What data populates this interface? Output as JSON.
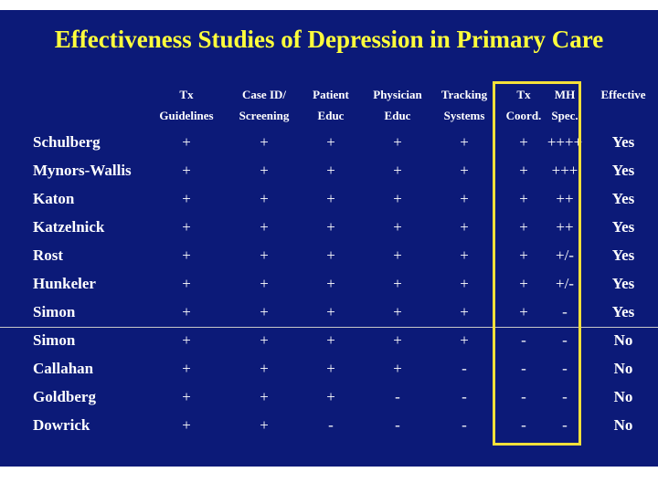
{
  "title": "Effectiveness Studies of Depression in Primary Care",
  "columns": [
    {
      "line1": "Tx",
      "line2": "Guidelines"
    },
    {
      "line1": "Case ID/",
      "line2": "Screening"
    },
    {
      "line1": "Patient",
      "line2": "Educ"
    },
    {
      "line1": "Physician",
      "line2": "Educ"
    },
    {
      "line1": "Tracking",
      "line2": "Systems"
    },
    {
      "line1": "Tx",
      "line2": "Coord."
    },
    {
      "line1": "MH",
      "line2": "Spec."
    },
    {
      "line1": "Effective",
      "line2": ""
    }
  ],
  "rows": [
    {
      "study": "Schulberg",
      "cells": [
        "+",
        "+",
        "+",
        "+",
        "+",
        "+",
        "++++",
        "Yes"
      ]
    },
    {
      "study": "Mynors-Wallis",
      "cells": [
        "+",
        "+",
        "+",
        "+",
        "+",
        "+",
        "+++",
        "Yes"
      ]
    },
    {
      "study": "Katon",
      "cells": [
        "+",
        "+",
        "+",
        "+",
        "+",
        "+",
        "++",
        "Yes"
      ]
    },
    {
      "study": "Katzelnick",
      "cells": [
        "+",
        "+",
        "+",
        "+",
        "+",
        "+",
        "++",
        "Yes"
      ]
    },
    {
      "study": "Rost",
      "cells": [
        "+",
        "+",
        "+",
        "+",
        "+",
        "+",
        "+/-",
        "Yes"
      ]
    },
    {
      "study": "Hunkeler",
      "cells": [
        "+",
        "+",
        "+",
        "+",
        "+",
        "+",
        "+/-",
        "Yes"
      ]
    },
    {
      "study": "Simon",
      "cells": [
        "+",
        "+",
        "+",
        "+",
        "+",
        "+",
        "-",
        "Yes"
      ]
    },
    {
      "study": "Simon",
      "cells": [
        "+",
        "+",
        "+",
        "+",
        "+",
        "-",
        "-",
        "No"
      ]
    },
    {
      "study": "Callahan",
      "cells": [
        "+",
        "+",
        "+",
        "+",
        "-",
        "-",
        "-",
        "No"
      ]
    },
    {
      "study": "Goldberg",
      "cells": [
        "+",
        "+",
        "+",
        "-",
        "-",
        "-",
        "-",
        "No"
      ]
    },
    {
      "study": "Dowrick",
      "cells": [
        "+",
        "+",
        "-",
        "-",
        "-",
        "-",
        "-",
        "No"
      ]
    }
  ],
  "colors": {
    "background": "#0c1a78",
    "title": "#ffff3c",
    "highlight_box": "#f5e03a",
    "text": "#ffffff"
  }
}
